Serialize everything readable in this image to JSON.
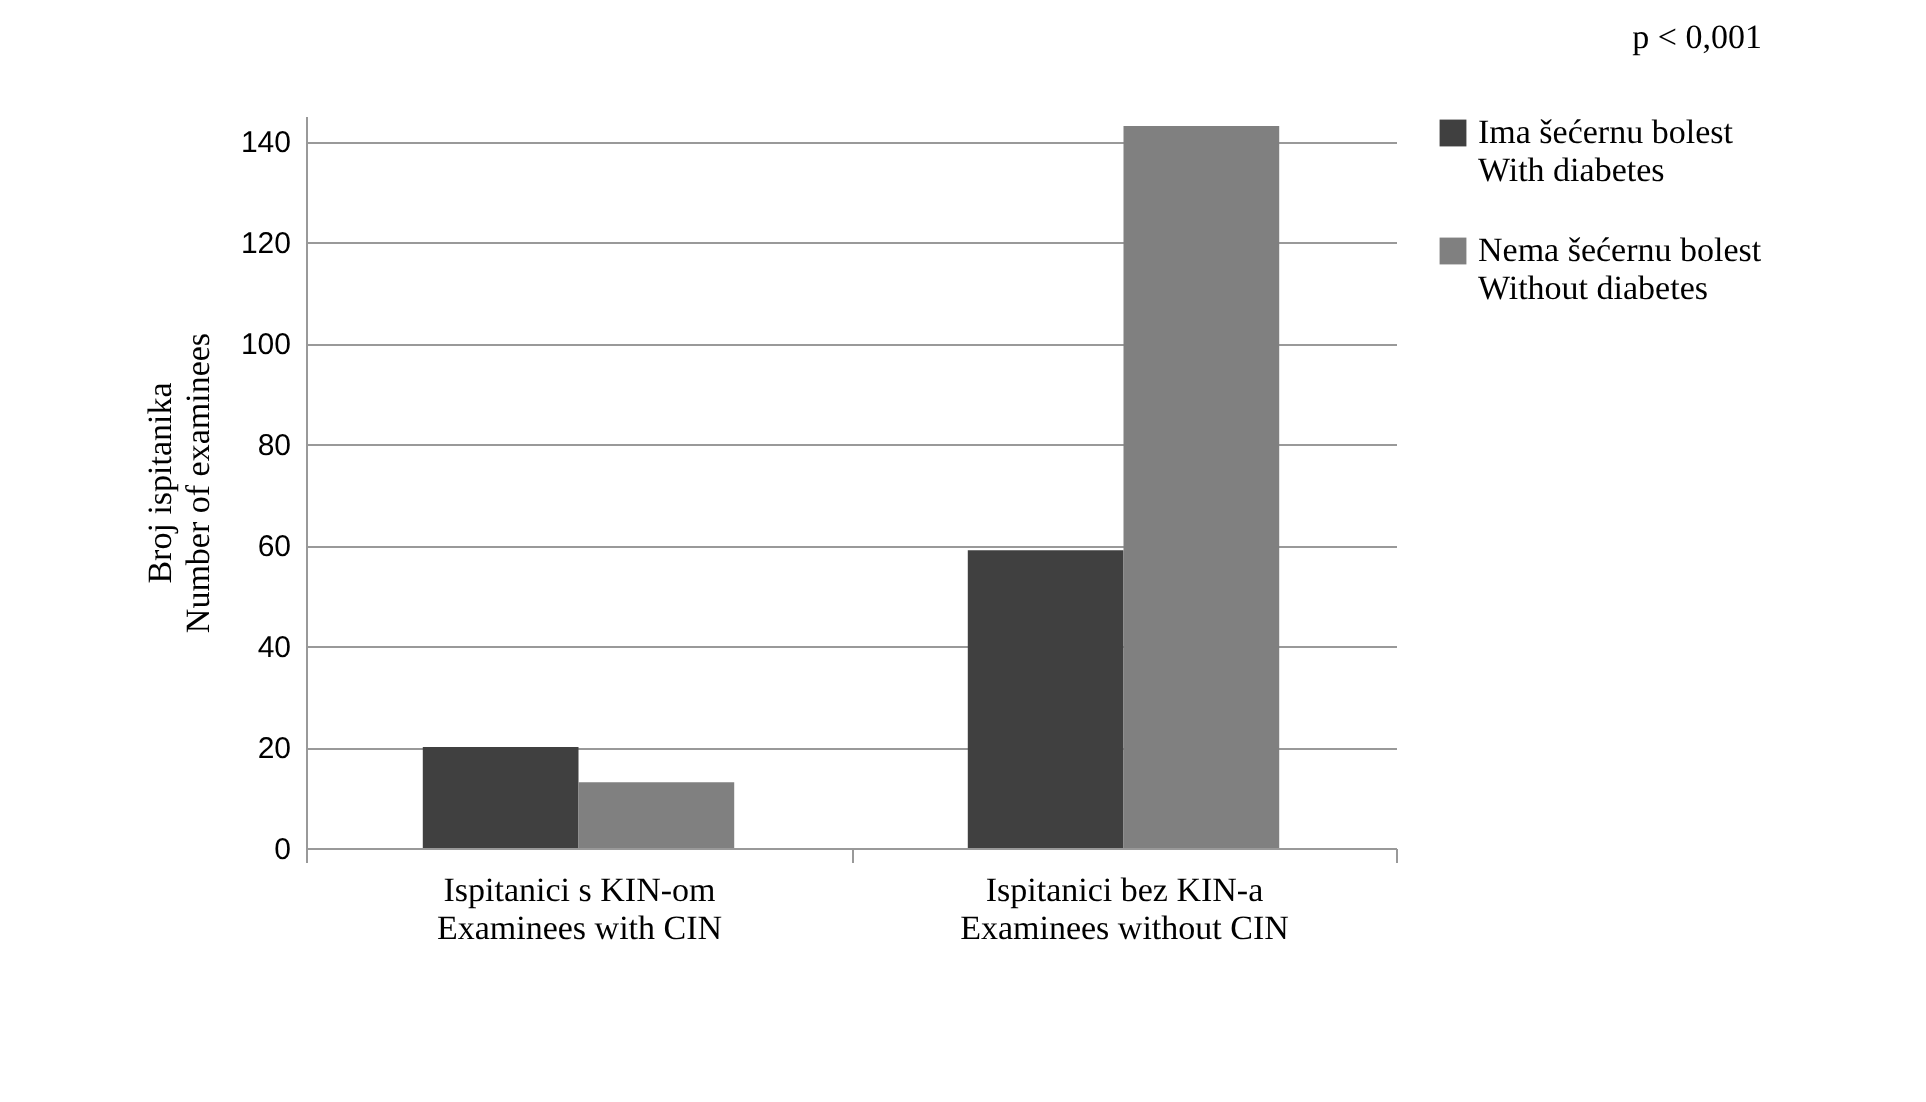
{
  "chart_data": {
    "type": "bar",
    "ylabel": "Broj ispitanika\nNumber of examinees",
    "categories": [
      "Ispitanici s KIN-om\nExaminees with CIN",
      "Ispitanici bez KIN-a\nExaminees without CIN"
    ],
    "series": [
      {
        "name": "Ima šećernu bolest\nWith diabetes",
        "color": "#404040",
        "values": [
          20,
          59
        ]
      },
      {
        "name": "Nema šećernu bolest\nWithout diabetes",
        "color": "#808080",
        "values": [
          13,
          143
        ]
      }
    ],
    "ylim": [
      0,
      145
    ],
    "yticks": [
      0,
      20,
      40,
      60,
      80,
      100,
      120,
      140
    ],
    "grid": "y",
    "legend": "right",
    "annotations": [
      "p < 0,001"
    ]
  }
}
